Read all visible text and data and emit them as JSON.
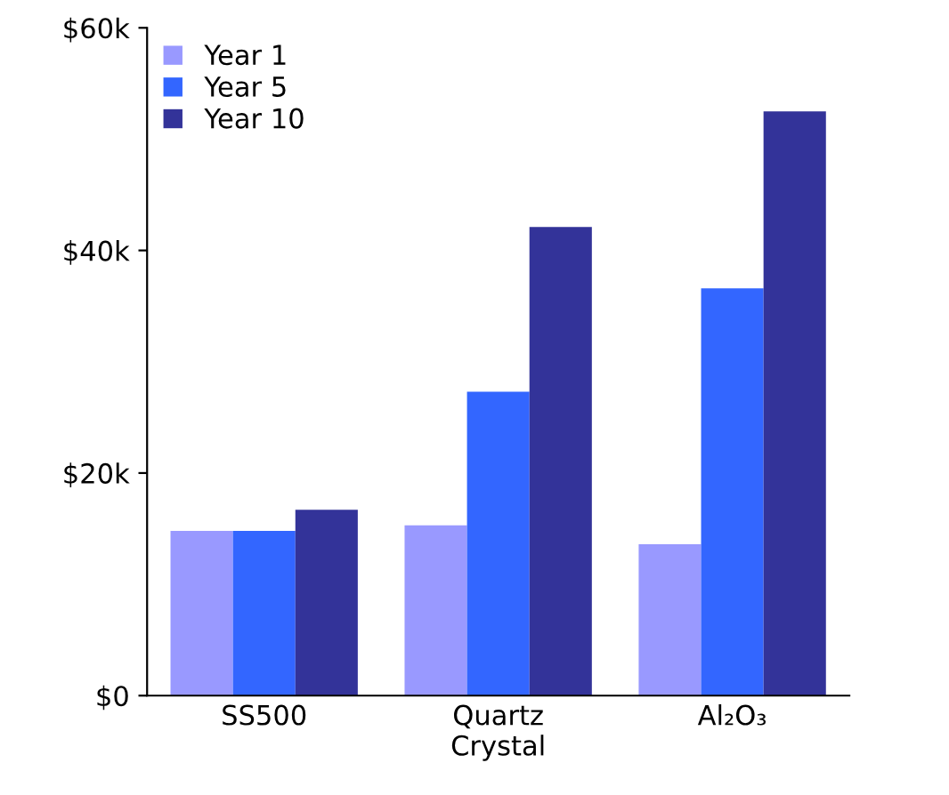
{
  "chart_data": {
    "type": "bar",
    "categories": [
      "SS500",
      "Quartz\nCrystal",
      "Al₂O₃"
    ],
    "series": [
      {
        "name": "Year 1",
        "color": "#9999ff",
        "values": [
          14800,
          15300,
          13600
        ]
      },
      {
        "name": "Year 5",
        "color": "#3366ff",
        "values": [
          14800,
          27300,
          36600
        ]
      },
      {
        "name": "Year 10",
        "color": "#333399",
        "values": [
          16700,
          42100,
          52500
        ]
      }
    ],
    "ylim": [
      0,
      60000
    ],
    "yticks": [
      {
        "value": 0,
        "label": "$0"
      },
      {
        "value": 20000,
        "label": "$20k"
      },
      {
        "value": 40000,
        "label": "$40k"
      },
      {
        "value": 60000,
        "label": "$60k"
      }
    ],
    "grid": false,
    "legend": "top left"
  }
}
